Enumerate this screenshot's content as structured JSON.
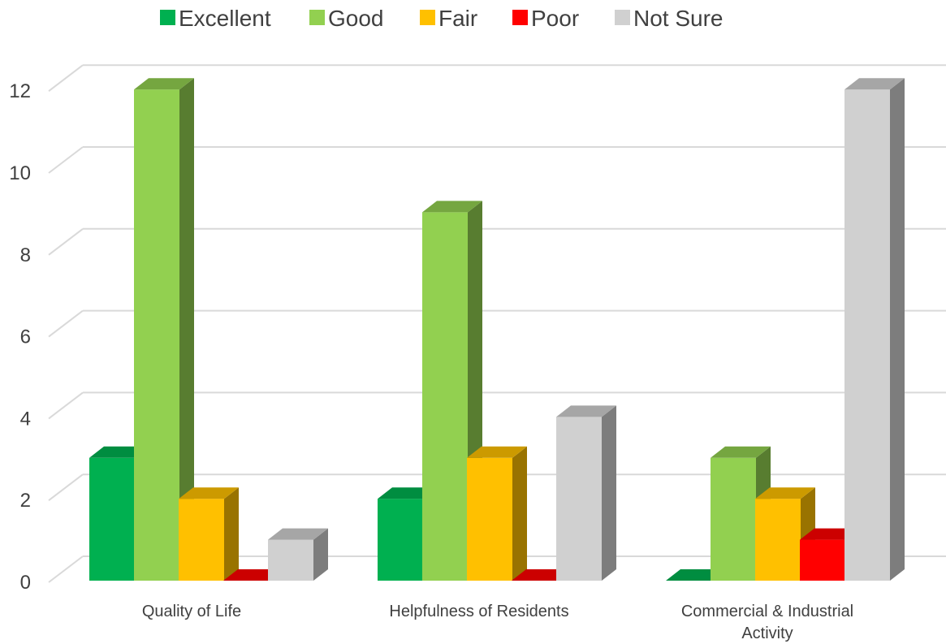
{
  "chart_data": {
    "type": "bar",
    "style": "3d-clustered-column",
    "title": "",
    "xlabel": "",
    "ylabel": "",
    "ylim": [
      0,
      12
    ],
    "yticks": [
      0,
      2,
      4,
      6,
      8,
      10,
      12
    ],
    "ytick_labels": [
      "0",
      "2",
      "4",
      "6",
      "8",
      "10",
      "12"
    ],
    "categories": [
      [
        "Quality of Life"
      ],
      [
        "Helpfulness of Residents"
      ],
      [
        "Commercial & Industrial",
        "Activity"
      ]
    ],
    "series": [
      {
        "name": "Excellent",
        "color": "#00B050",
        "values": [
          3,
          2,
          0
        ]
      },
      {
        "name": "Good",
        "color": "#92D050",
        "values": [
          12,
          9,
          3
        ]
      },
      {
        "name": "Fair",
        "color": "#FFC000",
        "values": [
          2,
          3,
          2
        ]
      },
      {
        "name": "Poor",
        "color": "#FF0000",
        "values": [
          0,
          0,
          1
        ]
      },
      {
        "name": "Not Sure",
        "color": "#D0D0D0",
        "values": [
          1,
          4,
          12
        ]
      }
    ],
    "legend_position": "top",
    "grid": true
  }
}
